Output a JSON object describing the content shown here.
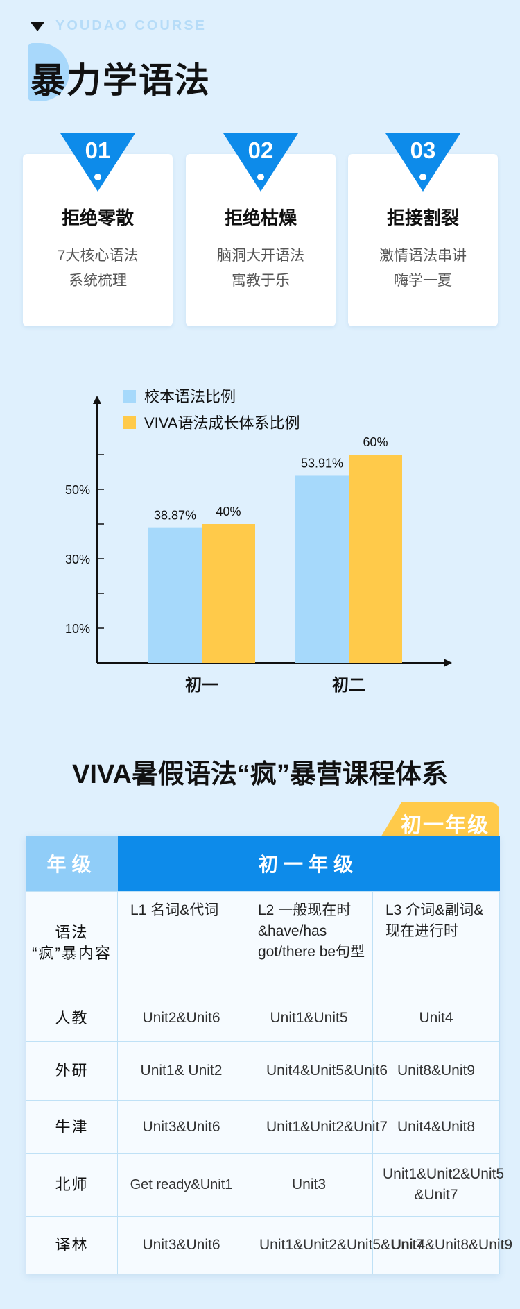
{
  "header": {
    "brand": "YOUDAO COURSE",
    "title": "暴力学语法"
  },
  "features": [
    {
      "num": "01",
      "title": "拒绝零散",
      "line1": "7大核心语法",
      "line2": "系统梳理"
    },
    {
      "num": "02",
      "title": "拒绝枯燥",
      "line1": "脑洞大开语法",
      "line2": "寓教于乐"
    },
    {
      "num": "03",
      "title": "拒接割裂",
      "line1": "激情语法串讲",
      "line2": "嗨学一夏"
    }
  ],
  "colors": {
    "accent": "#0d8bea",
    "light_blue": "#a6d9fb",
    "yellow": "#ffca4a",
    "background": "#dff0fd"
  },
  "chart_data": {
    "type": "bar",
    "categories": [
      "初一",
      "初二"
    ],
    "series": [
      {
        "name": "校本语法比例",
        "color": "#a6d9fb",
        "values": [
          38.87,
          53.91
        ],
        "labels": [
          "38.87%",
          "53.91%"
        ]
      },
      {
        "name": "VIVA语法成长体系比例",
        "color": "#ffca4a",
        "values": [
          40,
          60
        ],
        "labels": [
          "40%",
          "60%"
        ]
      }
    ],
    "yticks": [
      10,
      30,
      50
    ],
    "ytick_labels": [
      "10%",
      "30%",
      "50%"
    ],
    "ylim": [
      0,
      70
    ],
    "legend": "top-left",
    "grid": false
  },
  "course": {
    "title": "VIVA暑假语法“疯”暴营课程体系",
    "grade_tab": "初一年级",
    "table": {
      "corner_header": "年级",
      "grade_header": "初一年级",
      "rows": [
        {
          "label": "语法\n“疯”暴内容",
          "cells": [
            "L1 名词&代词",
            "L2 一般现在时&have/has got/there be句型",
            "L3 介词&副词&现在进行时"
          ]
        },
        {
          "label": "人教",
          "cells": [
            "Unit2&Unit6",
            "Unit1&Unit5",
            "Unit4"
          ]
        },
        {
          "label": "外研",
          "cells": [
            "Unit1& Unit2",
            "Unit4&Unit5&Unit6",
            "Unit8&Unit9"
          ]
        },
        {
          "label": "牛津",
          "cells": [
            "Unit3&Unit6",
            "Unit1&Unit2&Unit7",
            "Unit4&Unit8"
          ]
        },
        {
          "label": "北师",
          "cells": [
            "Get ready&Unit1",
            "Unit3",
            "Unit1&Unit2&Unit5 &Unit7"
          ]
        },
        {
          "label": "译林",
          "cells": [
            "Unit3&Unit6",
            "Unit1&Unit2&Unit5&Unit7",
            "Unit4&Unit8&Unit9"
          ]
        }
      ]
    }
  }
}
